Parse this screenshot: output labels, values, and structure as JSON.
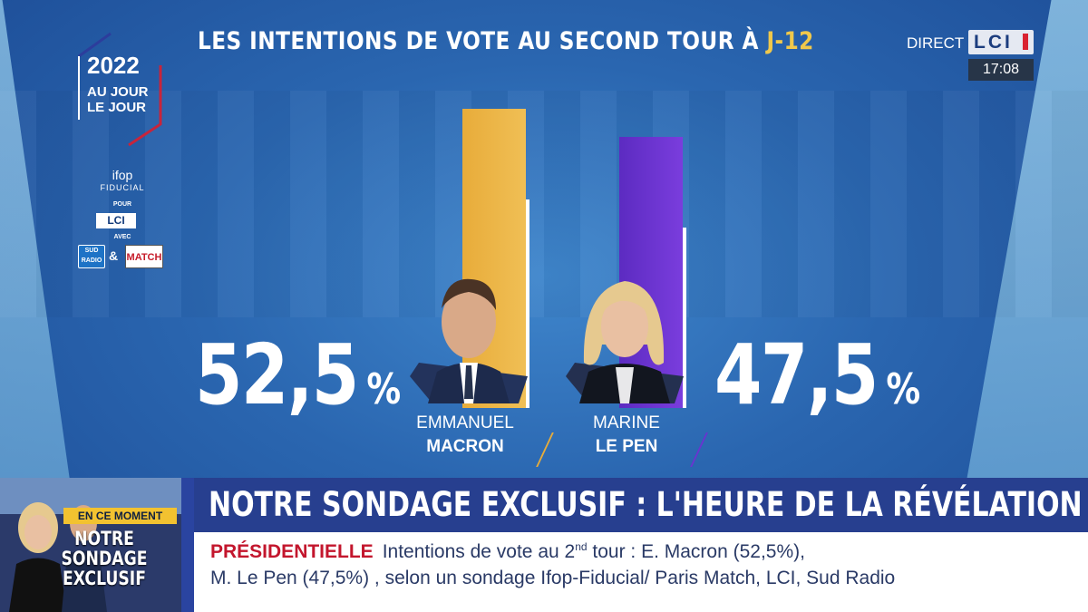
{
  "title": {
    "main": "LES INTENTIONS DE VOTE AU SECOND TOUR À",
    "accent": "J-12"
  },
  "show_logo": {
    "year": "2022",
    "line1": "AU JOUR",
    "line2": "LE JOUR"
  },
  "sources": {
    "pollster": "ifop",
    "pollster_sub": "FIDUCIAL",
    "for_label": "POUR",
    "lci_label": "LCI",
    "with_label": "AVEC",
    "sud_radio": "SUD RADIO",
    "amp": "&",
    "paris_match": "MATCH"
  },
  "channel": {
    "live_label": "DIRECT",
    "logo": "LCI",
    "time": "17:08"
  },
  "chart_data": {
    "type": "bar",
    "title": "LES INTENTIONS DE VOTE AU SECOND TOUR À J-12",
    "categories": [
      "EMMANUEL MACRON",
      "MARINE LE PEN"
    ],
    "values": [
      52.5,
      47.5
    ],
    "value_labels": [
      "52,5",
      "47,5"
    ],
    "unit": "%",
    "colors": [
      "#f0b545",
      "#6a33d0"
    ],
    "xlabel": "",
    "ylabel": "",
    "ylim": [
      0,
      60
    ]
  },
  "candidates": [
    {
      "first": "EMMANUEL",
      "last": "MACRON",
      "pct": "52,5",
      "sym": "%"
    },
    {
      "first": "MARINE",
      "last": "LE PEN",
      "pct": "47,5",
      "sym": "%"
    }
  ],
  "lower_third": {
    "thumb_label1": "EN CE MOMENT",
    "thumb_label2": "NOTRE SONDAGE EXCLUSIF",
    "headline": "NOTRE SONDAGE EXCLUSIF : L'HEURE DE LA RÉVÉLATION",
    "kicker": "PRÉSIDENTIELLE",
    "ticker_line1_a": "Intentions de vote au 2",
    "ticker_line1_sup": "nd",
    "ticker_line1_b": " tour : E. Macron (52,5%),",
    "ticker_line2": "M. Le Pen (47,5%) , selon un sondage Ifop-Fiducial/ Paris Match, LCI, Sud Radio"
  }
}
